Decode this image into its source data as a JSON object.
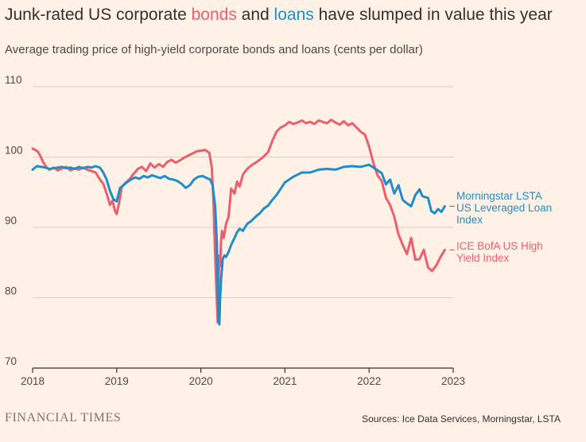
{
  "colors": {
    "background": "#FFF1E5",
    "bonds": "#EB5E6D",
    "loans": "#1F8DC9",
    "grid": "#D9CEC6",
    "axis": "#33302E"
  },
  "brand": "FINANCIAL TIMES",
  "source": "Sources: Ice Data Services, Morningstar, LSTA",
  "chart_data": {
    "type": "line",
    "title_parts": {
      "before": "Junk-rated US corporate ",
      "bonds": "bonds",
      "middle": " and ",
      "loans": "loans",
      "after": " have slumped in value this year"
    },
    "subtitle": "Average trading price of high-yield corporate bonds and loans (cents per dollar)",
    "xlabel": "",
    "ylabel": "",
    "xlim": [
      2018,
      2023
    ],
    "ylim": [
      70,
      110
    ],
    "xticks": [
      2018,
      2019,
      2020,
      2021,
      2022,
      2023
    ],
    "yticks": [
      70,
      80,
      90,
      100,
      110
    ],
    "grid": true,
    "series": [
      {
        "name": "ICE BofA US High Yield Index",
        "label_lines": [
          "ICE BofA US High",
          "Yield Index"
        ],
        "color": "#EB5E6D",
        "x": [
          2018.0,
          2018.03,
          2018.06,
          2018.09,
          2018.12,
          2018.16,
          2018.2,
          2018.25,
          2018.3,
          2018.35,
          2018.4,
          2018.45,
          2018.5,
          2018.55,
          2018.6,
          2018.65,
          2018.7,
          2018.75,
          2018.8,
          2018.84,
          2018.88,
          2018.92,
          2018.95,
          2018.98,
          2019.0,
          2019.03,
          2019.06,
          2019.1,
          2019.15,
          2019.2,
          2019.25,
          2019.3,
          2019.35,
          2019.4,
          2019.45,
          2019.5,
          2019.55,
          2019.6,
          2019.65,
          2019.7,
          2019.75,
          2019.8,
          2019.85,
          2019.9,
          2019.95,
          2020.0,
          2020.05,
          2020.1,
          2020.13,
          2020.15,
          2020.17,
          2020.19,
          2020.2,
          2020.21,
          2020.22,
          2020.23,
          2020.24,
          2020.25,
          2020.27,
          2020.3,
          2020.33,
          2020.36,
          2020.4,
          2020.43,
          2020.46,
          2020.5,
          2020.55,
          2020.6,
          2020.65,
          2020.7,
          2020.75,
          2020.8,
          2020.85,
          2020.9,
          2020.95,
          2021.0,
          2021.05,
          2021.1,
          2021.15,
          2021.2,
          2021.25,
          2021.3,
          2021.35,
          2021.4,
          2021.45,
          2021.5,
          2021.55,
          2021.6,
          2021.65,
          2021.7,
          2021.75,
          2021.8,
          2021.85,
          2021.9,
          2021.95,
          2022.0,
          2022.05,
          2022.1,
          2022.15,
          2022.2,
          2022.25,
          2022.3,
          2022.35,
          2022.4,
          2022.45,
          2022.5,
          2022.55,
          2022.6,
          2022.65,
          2022.7,
          2022.75,
          2022.8,
          2022.85,
          2022.9
        ],
        "values": [
          101.2,
          101.0,
          100.8,
          100.2,
          99.4,
          98.6,
          98.2,
          98.5,
          98.1,
          98.4,
          98.6,
          98.1,
          98.4,
          98.2,
          98.5,
          98.2,
          98.0,
          97.8,
          96.8,
          96.2,
          94.8,
          93.2,
          93.8,
          92.3,
          91.9,
          93.6,
          95.7,
          96.3,
          96.8,
          97.6,
          98.3,
          98.6,
          98.0,
          99.1,
          98.5,
          99.0,
          98.6,
          99.3,
          99.6,
          99.2,
          99.5,
          99.9,
          100.2,
          100.5,
          100.8,
          100.9,
          101.0,
          100.6,
          98.5,
          93.5,
          86.0,
          79.5,
          76.5,
          82.0,
          86.0,
          84.5,
          88.0,
          89.5,
          88.5,
          90.5,
          91.5,
          95.5,
          94.8,
          96.5,
          95.8,
          97.5,
          98.3,
          98.8,
          99.2,
          99.6,
          100.1,
          100.7,
          102.3,
          103.6,
          104.2,
          104.5,
          105.0,
          104.7,
          104.9,
          105.2,
          104.8,
          105.0,
          104.7,
          105.2,
          105.0,
          104.8,
          105.3,
          104.9,
          104.6,
          105.1,
          104.5,
          104.8,
          104.2,
          103.6,
          103.2,
          101.5,
          99.2,
          97.4,
          96.6,
          94.2,
          93.2,
          91.5,
          89.0,
          87.5,
          86.2,
          88.5,
          85.4,
          85.5,
          86.8,
          84.3,
          83.8,
          84.6,
          85.8,
          86.8
        ]
      },
      {
        "name": "Morningstar LSTA US Leveraged Loan Index",
        "label_lines": [
          "Morningstar LSTA",
          "US Leveraged Loan",
          "Index"
        ],
        "color": "#1F8DC9",
        "x": [
          2018.0,
          2018.05,
          2018.1,
          2018.15,
          2018.2,
          2018.25,
          2018.3,
          2018.35,
          2018.4,
          2018.45,
          2018.5,
          2018.55,
          2018.6,
          2018.65,
          2018.7,
          2018.75,
          2018.8,
          2018.84,
          2018.88,
          2018.92,
          2018.96,
          2019.0,
          2019.04,
          2019.08,
          2019.12,
          2019.17,
          2019.22,
          2019.27,
          2019.32,
          2019.37,
          2019.42,
          2019.47,
          2019.52,
          2019.57,
          2019.62,
          2019.67,
          2019.72,
          2019.77,
          2019.82,
          2019.87,
          2019.92,
          2019.97,
          2020.02,
          2020.07,
          2020.11,
          2020.14,
          2020.17,
          2020.19,
          2020.2,
          2020.21,
          2020.22,
          2020.23,
          2020.24,
          2020.26,
          2020.28,
          2020.3,
          2020.33,
          2020.36,
          2020.4,
          2020.43,
          2020.46,
          2020.5,
          2020.55,
          2020.6,
          2020.65,
          2020.7,
          2020.75,
          2020.8,
          2020.85,
          2020.9,
          2020.95,
          2021.0,
          2021.1,
          2021.2,
          2021.3,
          2021.4,
          2021.5,
          2021.6,
          2021.7,
          2021.8,
          2021.9,
          2022.0,
          2022.05,
          2022.1,
          2022.15,
          2022.2,
          2022.25,
          2022.3,
          2022.35,
          2022.4,
          2022.45,
          2022.5,
          2022.55,
          2022.6,
          2022.63,
          2022.66,
          2022.7,
          2022.74,
          2022.78,
          2022.82,
          2022.86,
          2022.9
        ],
        "values": [
          98.2,
          98.7,
          98.6,
          98.5,
          98.3,
          98.4,
          98.5,
          98.6,
          98.4,
          98.5,
          98.3,
          98.6,
          98.4,
          98.6,
          98.5,
          98.7,
          98.5,
          97.8,
          96.8,
          95.2,
          94.0,
          93.7,
          95.6,
          96.0,
          96.4,
          96.8,
          97.1,
          96.9,
          97.3,
          97.1,
          97.4,
          97.2,
          97.0,
          97.3,
          96.9,
          96.8,
          96.6,
          96.2,
          95.6,
          96.0,
          96.8,
          97.2,
          97.3,
          97.0,
          96.8,
          96.0,
          93.0,
          88.0,
          82.0,
          77.0,
          76.2,
          80.0,
          82.5,
          85.5,
          86.0,
          85.8,
          86.5,
          87.5,
          88.5,
          89.3,
          89.8,
          89.5,
          90.5,
          90.9,
          91.5,
          92.0,
          92.7,
          93.1,
          93.9,
          94.6,
          95.5,
          96.4,
          97.2,
          97.8,
          97.8,
          98.2,
          98.3,
          98.2,
          98.6,
          98.7,
          98.6,
          98.9,
          98.5,
          98.1,
          97.7,
          96.1,
          96.8,
          94.8,
          96.0,
          93.9,
          93.4,
          93.0,
          94.6,
          95.4,
          94.5,
          94.3,
          94.2,
          92.3,
          92.0,
          92.6,
          92.2,
          93.0
        ]
      }
    ]
  }
}
